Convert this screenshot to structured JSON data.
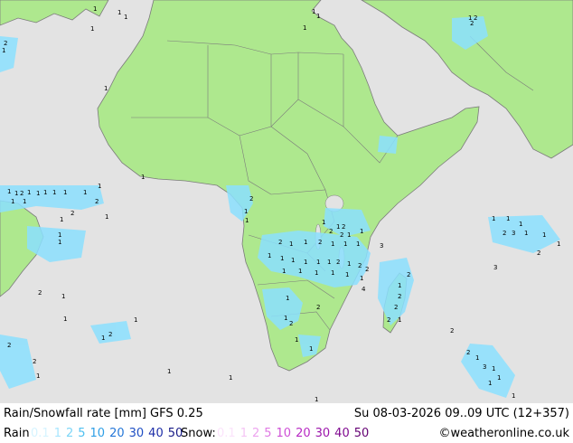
{
  "title": "Rain/Snowfall rate [mm] GFS 0.25",
  "valid_time": "Su 08-03-2026 09..09 UTC (12+357)",
  "credit": "©weatheronline.co.uk",
  "legend": {
    "rain_label": "Rain",
    "rain_levels": [
      {
        "label": "0.1",
        "color": "#d6f4ff"
      },
      {
        "label": "1",
        "color": "#a8e6ff"
      },
      {
        "label": "2",
        "color": "#7dd6f7"
      },
      {
        "label": "5",
        "color": "#4fc0f0"
      },
      {
        "label": "10",
        "color": "#2f9fe6"
      },
      {
        "label": "20",
        "color": "#2577d8"
      },
      {
        "label": "30",
        "color": "#1f4fc4"
      },
      {
        "label": "40",
        "color": "#1d2ea8"
      },
      {
        "label": "50",
        "color": "#171b86"
      }
    ],
    "snow_label": "Snow:",
    "snow_levels": [
      {
        "label": "0.1",
        "color": "#fbe3fb"
      },
      {
        "label": "1",
        "color": "#f5c6f5"
      },
      {
        "label": "2",
        "color": "#eda4ef"
      },
      {
        "label": "5",
        "color": "#e07ae4"
      },
      {
        "label": "10",
        "color": "#cf4fd6"
      },
      {
        "label": "20",
        "color": "#b82bc4"
      },
      {
        "label": "30",
        "color": "#9c16ab"
      },
      {
        "label": "40",
        "color": "#800a90"
      },
      {
        "label": "50",
        "color": "#640073"
      }
    ]
  },
  "map_colors": {
    "sea": "#e3e3e3",
    "land": "#aee88e",
    "border": "#7b7b7b",
    "rain": "#8be0ff"
  }
}
